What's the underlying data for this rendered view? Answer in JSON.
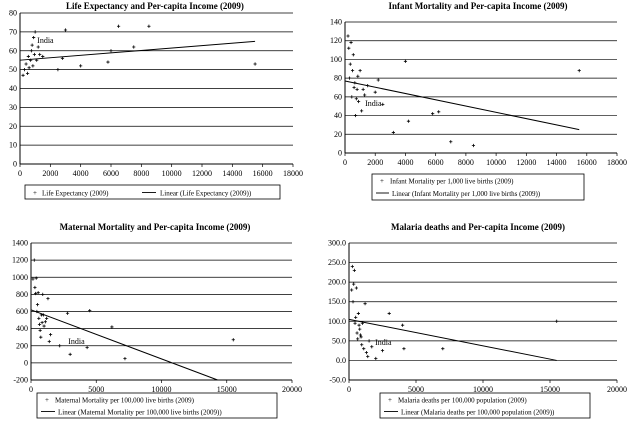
{
  "chart_data": [
    {
      "type": "scatter",
      "title": "Life Expectancy and Per-capita Income (2009)",
      "xlim": [
        0,
        18000
      ],
      "ylim": [
        0,
        80
      ],
      "xticks": [
        0,
        2000,
        4000,
        6000,
        8000,
        10000,
        12000,
        14000,
        16000,
        18000
      ],
      "yticks": [
        0,
        10,
        20,
        30,
        40,
        50,
        60,
        70,
        80
      ],
      "xlabel": "",
      "ylabel": "",
      "legend": [
        "Life Expectancy (2009)",
        "Linear (Life Expectancy (2009))"
      ],
      "annotation": {
        "text": "India",
        "x": 1000,
        "y": 64
      },
      "points": [
        [
          200,
          47
        ],
        [
          300,
          50
        ],
        [
          400,
          53
        ],
        [
          500,
          48
        ],
        [
          550,
          57
        ],
        [
          600,
          51
        ],
        [
          700,
          55
        ],
        [
          750,
          60
        ],
        [
          800,
          63
        ],
        [
          850,
          52
        ],
        [
          900,
          67
        ],
        [
          950,
          58
        ],
        [
          1000,
          70
        ],
        [
          1100,
          55
        ],
        [
          1200,
          62
        ],
        [
          1300,
          58
        ],
        [
          1500,
          57
        ],
        [
          2500,
          50
        ],
        [
          2800,
          56
        ],
        [
          3000,
          71
        ],
        [
          4000,
          52
        ],
        [
          5800,
          54
        ],
        [
          6000,
          60
        ],
        [
          6500,
          73
        ],
        [
          7500,
          62
        ],
        [
          8500,
          73
        ],
        [
          15500,
          53
        ]
      ],
      "trend": [
        [
          0,
          55
        ],
        [
          15500,
          65
        ]
      ]
    },
    {
      "type": "scatter",
      "title": "Infant Mortality and Per-capita Income (2009)",
      "xlim": [
        0,
        18000
      ],
      "ylim": [
        0,
        140
      ],
      "xticks": [
        0,
        2000,
        4000,
        6000,
        8000,
        10000,
        12000,
        14000,
        16000,
        18000
      ],
      "yticks": [
        0,
        20,
        40,
        60,
        80,
        100,
        120,
        140
      ],
      "xlabel": "",
      "ylabel": "",
      "legend": [
        "Infant Mortality per 1,000 live births (2009)",
        "Linear (Infant Mortality per 1,000 live births (2009))"
      ],
      "annotation": {
        "text": "India",
        "x": 1200,
        "y": 50
      },
      "points": [
        [
          200,
          125
        ],
        [
          250,
          112
        ],
        [
          300,
          80
        ],
        [
          350,
          95
        ],
        [
          400,
          118
        ],
        [
          450,
          60
        ],
        [
          500,
          88
        ],
        [
          550,
          105
        ],
        [
          600,
          70
        ],
        [
          650,
          75
        ],
        [
          700,
          40
        ],
        [
          750,
          58
        ],
        [
          800,
          68
        ],
        [
          850,
          82
        ],
        [
          900,
          55
        ],
        [
          1000,
          88
        ],
        [
          1100,
          45
        ],
        [
          1200,
          68
        ],
        [
          1300,
          62
        ],
        [
          1500,
          72
        ],
        [
          2000,
          65
        ],
        [
          2200,
          78
        ],
        [
          2500,
          52
        ],
        [
          3200,
          22
        ],
        [
          4000,
          98
        ],
        [
          4200,
          34
        ],
        [
          5800,
          42
        ],
        [
          6200,
          44
        ],
        [
          7000,
          12
        ],
        [
          8500,
          8
        ],
        [
          15500,
          88
        ]
      ],
      "trend": [
        [
          0,
          77
        ],
        [
          15500,
          25
        ]
      ]
    },
    {
      "type": "scatter",
      "title": "Maternal Mortality and Per-capita Income (2009)",
      "xlim": [
        0,
        20000
      ],
      "ylim": [
        -200,
        1400
      ],
      "xticks": [
        0,
        5000,
        10000,
        15000,
        20000
      ],
      "yticks": [
        -200,
        0,
        200,
        400,
        600,
        800,
        1000,
        1200,
        1400
      ],
      "xlabel": "",
      "ylabel": "",
      "legend": [
        "Maternal Mortality per 100,000 live births (2009)",
        "Linear (Maternal Mortality per 100,000 live births (2009))"
      ],
      "annotation": {
        "text": "India",
        "x": 2700,
        "y": 220
      },
      "points": [
        [
          150,
          980
        ],
        [
          250,
          1200
        ],
        [
          300,
          880
        ],
        [
          350,
          810
        ],
        [
          400,
          990
        ],
        [
          450,
          600
        ],
        [
          500,
          680
        ],
        [
          550,
          820
        ],
        [
          600,
          520
        ],
        [
          650,
          450
        ],
        [
          700,
          380
        ],
        [
          750,
          300
        ],
        [
          800,
          560
        ],
        [
          850,
          470
        ],
        [
          900,
          800
        ],
        [
          950,
          560
        ],
        [
          1000,
          430
        ],
        [
          1100,
          480
        ],
        [
          1200,
          520
        ],
        [
          1300,
          750
        ],
        [
          1400,
          250
        ],
        [
          1500,
          330
        ],
        [
          2200,
          200
        ],
        [
          2800,
          580
        ],
        [
          3000,
          100
        ],
        [
          4300,
          180
        ],
        [
          4500,
          610
        ],
        [
          6200,
          420
        ],
        [
          7200,
          50
        ],
        [
          15500,
          270
        ]
      ],
      "trend": [
        [
          0,
          620
        ],
        [
          14300,
          -200
        ]
      ]
    },
    {
      "type": "scatter",
      "title": "Malaria deaths and Per-capita Income (2009)",
      "xlim": [
        0,
        20000
      ],
      "ylim": [
        0,
        300
      ],
      "yrange": [
        -50,
        300
      ],
      "xticks": [
        0,
        5000,
        10000,
        15000,
        20000
      ],
      "yticks": [
        -50,
        0,
        50,
        100,
        150,
        200,
        250,
        300
      ],
      "ytick_labels": [
        "-50.0",
        "0.0",
        "50.0",
        "100.0",
        "150.0",
        "200.0",
        "250.0",
        "300.0"
      ],
      "xlabel": "",
      "ylabel": "",
      "legend": [
        "Malaria deaths per 100,000 population (2009)",
        "Linear (Malaria deaths per 100,000 population (2009))"
      ],
      "annotation": {
        "text": "India",
        "x": 1800,
        "y": 40
      },
      "points": [
        [
          200,
          180
        ],
        [
          250,
          240
        ],
        [
          300,
          150
        ],
        [
          350,
          195
        ],
        [
          400,
          230
        ],
        [
          450,
          95
        ],
        [
          500,
          110
        ],
        [
          550,
          185
        ],
        [
          600,
          70
        ],
        [
          650,
          55
        ],
        [
          700,
          120
        ],
        [
          750,
          90
        ],
        [
          800,
          80
        ],
        [
          850,
          65
        ],
        [
          900,
          60
        ],
        [
          950,
          40
        ],
        [
          1000,
          95
        ],
        [
          1100,
          30
        ],
        [
          1200,
          145
        ],
        [
          1300,
          20
        ],
        [
          1400,
          10
        ],
        [
          1500,
          50
        ],
        [
          1700,
          35
        ],
        [
          2000,
          5
        ],
        [
          2500,
          25
        ],
        [
          3000,
          120
        ],
        [
          4000,
          90
        ],
        [
          4100,
          30
        ],
        [
          7000,
          30
        ],
        [
          15500,
          100
        ]
      ],
      "trend": [
        [
          0,
          105
        ],
        [
          15500,
          0
        ]
      ]
    }
  ]
}
